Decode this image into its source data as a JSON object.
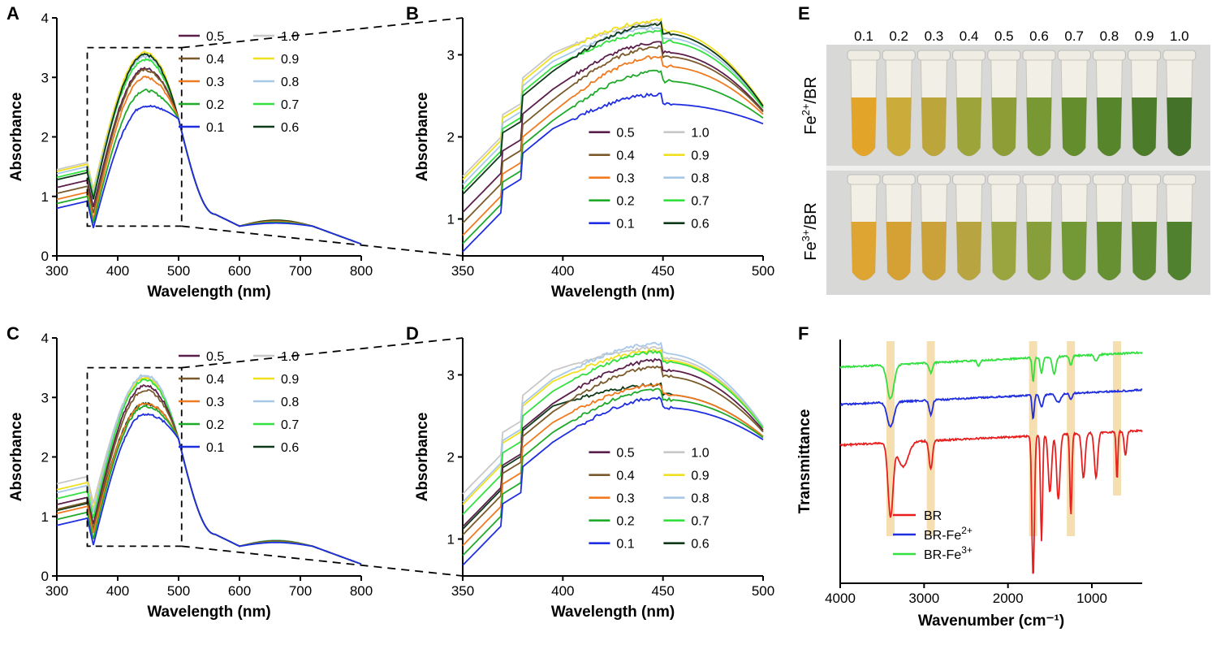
{
  "colors": {
    "0.1": "#1f2ee0",
    "0.2": "#1faa2a",
    "0.3": "#f07a20",
    "0.4": "#7a5a2a",
    "0.5": "#5a1f4a",
    "0.6": "#0f3a1a",
    "0.7": "#33e040",
    "0.8": "#a8c8e8",
    "0.9": "#f0e020",
    "1.0": "#c8c8c8",
    "BR": "#e81f1f",
    "BR-Fe2": "#1f2ee0",
    "BR-Fe3": "#33e040",
    "highlight": "#f5deb0"
  },
  "panel_letters": {
    "A": "A",
    "B": "B",
    "C": "C",
    "D": "D",
    "E": "E",
    "F": "F"
  },
  "chart_data": [
    {
      "id": "A",
      "type": "line",
      "xlabel": "Wavelength (nm)",
      "ylabel": "Absorbance",
      "xlim": [
        300,
        800
      ],
      "ylim": [
        0,
        4
      ],
      "xticks": [
        300,
        400,
        500,
        600,
        700,
        800
      ],
      "yticks": [
        0,
        1,
        2,
        3,
        4
      ],
      "legend_position": "top-right",
      "legend": [
        "0.5",
        "1.0",
        "0.4",
        "0.9",
        "0.3",
        "0.8",
        "0.2",
        "0.7",
        "0.1",
        "0.6"
      ],
      "zoom_box": {
        "x": [
          350,
          505
        ],
        "y": [
          0.5,
          3.5
        ]
      },
      "baseline": 0,
      "series_peaks": {
        "0.1": 2.52,
        "0.2": 2.78,
        "0.3": 3.0,
        "0.4": 3.12,
        "0.5": 3.15,
        "0.6": 3.38,
        "0.7": 3.3,
        "0.8": 3.35,
        "0.9": 3.42,
        "1.0": 3.4
      },
      "series_start": {
        "0.1": 0.8,
        "0.2": 0.88,
        "0.3": 0.95,
        "0.4": 1.05,
        "0.5": 1.15,
        "0.6": 1.28,
        "0.7": 1.32,
        "0.8": 1.38,
        "0.9": 1.42,
        "1.0": 1.45
      }
    },
    {
      "id": "B",
      "type": "line",
      "xlabel": "Wavelength (nm)",
      "ylabel": "Absorbance",
      "xlim": [
        350,
        500
      ],
      "ylim": [
        0.55,
        3.45
      ],
      "xticks": [
        350,
        400,
        450,
        500
      ],
      "yticks": [
        1,
        2,
        3
      ],
      "legend_position": "bottom-right",
      "legend": [
        "0.5",
        "1.0",
        "0.4",
        "0.9",
        "0.3",
        "0.8",
        "0.2",
        "0.7",
        "0.1",
        "0.6"
      ],
      "series_peaks": {
        "0.1": 2.52,
        "0.2": 2.8,
        "0.3": 2.98,
        "0.4": 3.1,
        "0.5": 3.15,
        "0.6": 3.38,
        "0.7": 3.28,
        "0.8": 3.33,
        "0.9": 3.42,
        "1.0": 3.38
      },
      "series_start": {
        "0.1": 0.6,
        "0.2": 0.7,
        "0.3": 0.8,
        "0.4": 0.95,
        "0.5": 1.08,
        "0.6": 1.3,
        "0.7": 1.35,
        "0.8": 1.42,
        "0.9": 1.48,
        "1.0": 1.52
      }
    },
    {
      "id": "C",
      "type": "line",
      "xlabel": "Wavelength (nm)",
      "ylabel": "Absorbance",
      "xlim": [
        300,
        800
      ],
      "ylim": [
        0,
        4
      ],
      "xticks": [
        300,
        400,
        500,
        600,
        700,
        800
      ],
      "yticks": [
        0,
        1,
        2,
        3,
        4
      ],
      "legend_position": "top-right",
      "legend": [
        "0.5",
        "1.0",
        "0.4",
        "0.9",
        "0.3",
        "0.8",
        "0.2",
        "0.7",
        "0.1",
        "0.6"
      ],
      "zoom_box": {
        "x": [
          350,
          505
        ],
        "y": [
          0.5,
          3.5
        ]
      },
      "baseline": 0,
      "series_peaks": {
        "0.1": 2.72,
        "0.2": 2.85,
        "0.3": 2.9,
        "0.4": 3.12,
        "0.5": 3.2,
        "0.6": 2.9,
        "0.7": 3.3,
        "0.8": 3.38,
        "0.9": 3.32,
        "1.0": 3.35
      },
      "series_start": {
        "0.1": 0.85,
        "0.2": 0.95,
        "0.3": 1.05,
        "0.4": 1.12,
        "0.5": 1.2,
        "0.6": 1.1,
        "0.7": 1.3,
        "0.8": 1.4,
        "0.9": 1.45,
        "1.0": 1.55
      }
    },
    {
      "id": "D",
      "type": "line",
      "xlabel": "Wavelength (nm)",
      "ylabel": "Absorbance",
      "xlim": [
        350,
        500
      ],
      "ylim": [
        0.55,
        3.45
      ],
      "xticks": [
        350,
        400,
        450,
        500
      ],
      "yticks": [
        1,
        2,
        3
      ],
      "legend_position": "bottom-right",
      "legend": [
        "0.5",
        "1.0",
        "0.4",
        "0.9",
        "0.3",
        "0.8",
        "0.2",
        "0.7",
        "0.1",
        "0.6"
      ],
      "series_peaks": {
        "0.1": 2.72,
        "0.2": 2.82,
        "0.3": 2.88,
        "0.4": 3.1,
        "0.5": 3.18,
        "0.6": 2.88,
        "0.7": 3.28,
        "0.8": 3.38,
        "0.9": 3.3,
        "1.0": 3.33
      },
      "series_start": {
        "0.1": 0.68,
        "0.2": 0.8,
        "0.3": 0.92,
        "0.4": 1.05,
        "0.5": 1.15,
        "0.6": 1.12,
        "0.7": 1.3,
        "0.8": 1.45,
        "0.9": 1.42,
        "1.0": 1.55
      }
    },
    {
      "id": "F",
      "type": "line",
      "xlabel": "Wavenumber (cm⁻¹)",
      "ylabel": "Transmittance",
      "xlim": [
        4000,
        400
      ],
      "xticks": [
        4000,
        3000,
        2000,
        1000
      ],
      "highlight_bands": [
        3400,
        2920,
        1700,
        1250,
        700
      ],
      "legend_position": "bottom-left",
      "series": [
        {
          "key": "BR",
          "name": "BR",
          "sup": ""
        },
        {
          "key": "BR-Fe2",
          "name": "BR-Fe",
          "sup": "2+"
        },
        {
          "key": "BR-Fe3",
          "name": "BR-Fe",
          "sup": "3+"
        }
      ]
    }
  ],
  "photo": {
    "concentrations": [
      "0.1",
      "0.2",
      "0.3",
      "0.4",
      "0.5",
      "0.6",
      "0.7",
      "0.8",
      "0.9",
      "1.0"
    ],
    "row1_label": {
      "base": "Fe",
      "sup": "2+",
      "suffix": "/BR"
    },
    "row2_label": {
      "base": "Fe",
      "sup": "3+",
      "suffix": "/BR"
    },
    "row1_colors": [
      "#e0a020",
      "#c8a830",
      "#b8a030",
      "#98a030",
      "#88982c",
      "#709228",
      "#5c8824",
      "#4e7e22",
      "#427420",
      "#3a6a1e"
    ],
    "row2_colors": [
      "#dca028",
      "#d49c2a",
      "#c89c30",
      "#b4a038",
      "#96a036",
      "#809a32",
      "#6c922c",
      "#5e8a28",
      "#528226",
      "#467a24"
    ]
  }
}
